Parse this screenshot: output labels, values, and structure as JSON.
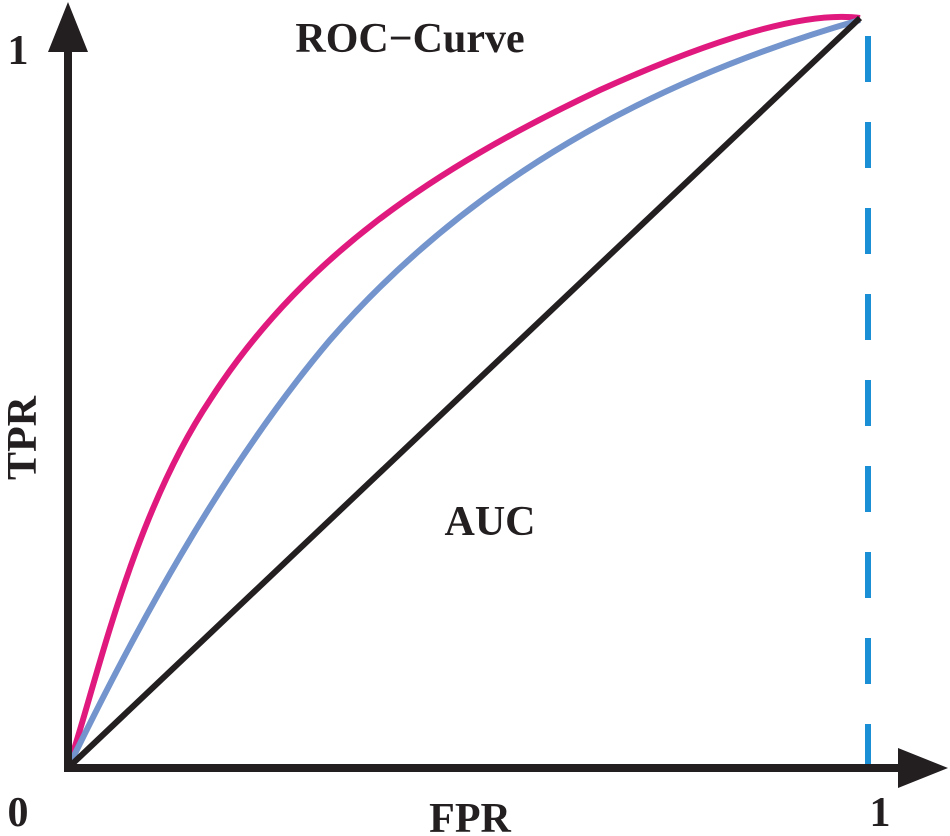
{
  "title": "ROC−Curve",
  "area_label": "AUC",
  "axes": {
    "x_label": "FPR",
    "y_label": "TPR",
    "origin": "0",
    "x_max": "1",
    "y_max": "1"
  }
}
